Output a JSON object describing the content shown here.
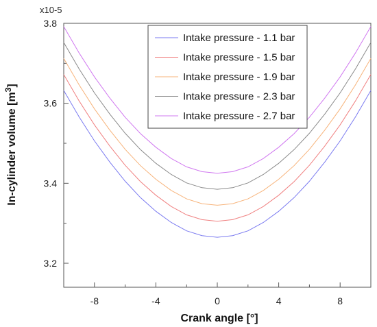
{
  "chart_data": {
    "type": "line",
    "title": "",
    "xlabel": "Crank angle [°]",
    "ylabel_main": "In-cylinder volume [m",
    "ylabel_sup": "3",
    "ylabel_end": "]",
    "y_exponent_label": "x10-5",
    "y_multiplier": 1e-05,
    "xlim": [
      -10,
      10
    ],
    "ylim": [
      3.14,
      3.8
    ],
    "x_ticks": [
      -8,
      -4,
      0,
      4,
      8
    ],
    "x_tick_labels": [
      "-8",
      "-4",
      "0",
      "4",
      "8"
    ],
    "y_ticks": [
      3.2,
      3.4,
      3.6,
      3.8
    ],
    "y_tick_labels": [
      "3.2",
      "3.4",
      "3.6",
      "3.8"
    ],
    "grid": false,
    "legend_position": "top-right",
    "x": [
      -10,
      -9,
      -8,
      -7,
      -6,
      -5,
      -4,
      -3,
      -2,
      -1,
      0,
      1,
      2,
      3,
      4,
      5,
      6,
      7,
      8,
      9,
      10
    ],
    "series": [
      {
        "name": "Intake pressure - 1.1 bar",
        "color": "#7a7af0",
        "values": [
          3.632,
          3.566,
          3.506,
          3.453,
          3.405,
          3.364,
          3.33,
          3.302,
          3.281,
          3.269,
          3.265,
          3.269,
          3.281,
          3.302,
          3.33,
          3.364,
          3.405,
          3.453,
          3.506,
          3.566,
          3.632
        ]
      },
      {
        "name": "Intake pressure - 1.5 bar",
        "color": "#f08080",
        "values": [
          3.672,
          3.606,
          3.546,
          3.493,
          3.445,
          3.404,
          3.37,
          3.342,
          3.321,
          3.309,
          3.305,
          3.309,
          3.321,
          3.342,
          3.37,
          3.404,
          3.445,
          3.493,
          3.546,
          3.606,
          3.672
        ]
      },
      {
        "name": "Intake pressure - 1.9 bar",
        "color": "#f7b37a",
        "values": [
          3.712,
          3.646,
          3.586,
          3.533,
          3.485,
          3.444,
          3.41,
          3.382,
          3.361,
          3.349,
          3.345,
          3.349,
          3.361,
          3.382,
          3.41,
          3.444,
          3.485,
          3.533,
          3.586,
          3.646,
          3.712
        ]
      },
      {
        "name": "Intake pressure - 2.3 bar",
        "color": "#8a8a8a",
        "values": [
          3.752,
          3.686,
          3.626,
          3.573,
          3.525,
          3.484,
          3.45,
          3.422,
          3.401,
          3.389,
          3.385,
          3.389,
          3.401,
          3.422,
          3.45,
          3.484,
          3.525,
          3.573,
          3.626,
          3.686,
          3.752
        ]
      },
      {
        "name": "Intake pressure - 2.7 bar",
        "color": "#d078f0",
        "values": [
          3.792,
          3.726,
          3.666,
          3.613,
          3.565,
          3.524,
          3.49,
          3.462,
          3.441,
          3.429,
          3.425,
          3.429,
          3.441,
          3.462,
          3.49,
          3.524,
          3.565,
          3.613,
          3.666,
          3.726,
          3.792
        ]
      }
    ]
  }
}
